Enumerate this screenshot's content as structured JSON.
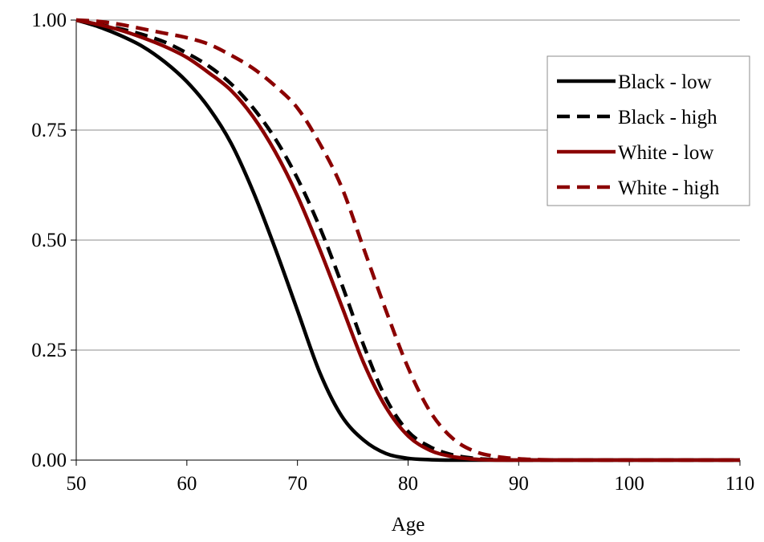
{
  "chart_data": {
    "type": "line",
    "title": "",
    "xlabel": "Age",
    "ylabel": "",
    "xlim": [
      50,
      110
    ],
    "ylim": [
      0,
      1
    ],
    "x_ticks": [
      50,
      60,
      70,
      80,
      90,
      100,
      110
    ],
    "y_ticks": [
      0,
      0.25,
      0.5,
      0.75,
      1
    ],
    "x_tick_labels": [
      "50",
      "60",
      "70",
      "80",
      "90",
      "100",
      "110"
    ],
    "y_tick_labels": [
      "0.00",
      "0.25",
      "0.50",
      "0.75",
      "1.00"
    ],
    "grid": "horizontal",
    "legend_position": "top-right",
    "x": [
      50,
      52,
      54,
      56,
      58,
      60,
      62,
      64,
      66,
      68,
      70,
      72,
      74,
      76,
      78,
      80,
      82,
      84,
      86,
      88,
      90,
      92,
      94,
      96,
      100,
      105,
      110
    ],
    "series": [
      {
        "name": "Black - low",
        "color": "#000000",
        "dash": "solid",
        "values": [
          1.0,
          0.985,
          0.965,
          0.94,
          0.905,
          0.86,
          0.8,
          0.72,
          0.61,
          0.48,
          0.34,
          0.2,
          0.1,
          0.045,
          0.015,
          0.004,
          0.001,
          0.0,
          0.0,
          0.0,
          0.0,
          0.0,
          0.0,
          0.0,
          0.0,
          0.0,
          0.0
        ]
      },
      {
        "name": "Black - high",
        "color": "#000000",
        "dash": "dashed",
        "values": [
          1.0,
          0.99,
          0.98,
          0.967,
          0.95,
          0.925,
          0.895,
          0.855,
          0.8,
          0.73,
          0.64,
          0.53,
          0.4,
          0.26,
          0.14,
          0.065,
          0.03,
          0.012,
          0.004,
          0.001,
          0.0,
          0.0,
          0.0,
          0.0,
          0.0,
          0.0,
          0.0
        ]
      },
      {
        "name": "White - low",
        "color": "#8B0000",
        "dash": "solid",
        "values": [
          1.0,
          0.99,
          0.977,
          0.96,
          0.94,
          0.915,
          0.88,
          0.84,
          0.78,
          0.7,
          0.6,
          0.48,
          0.35,
          0.22,
          0.12,
          0.055,
          0.022,
          0.008,
          0.002,
          0.0,
          0.0,
          0.0,
          0.0,
          0.0,
          0.0,
          0.0,
          0.0
        ]
      },
      {
        "name": "White - high",
        "color": "#8B0000",
        "dash": "dashed",
        "values": [
          1.0,
          0.997,
          0.99,
          0.98,
          0.97,
          0.96,
          0.945,
          0.92,
          0.89,
          0.85,
          0.8,
          0.72,
          0.62,
          0.48,
          0.34,
          0.21,
          0.11,
          0.05,
          0.02,
          0.008,
          0.003,
          0.001,
          0.0,
          0.0,
          0.0,
          0.0,
          0.0
        ]
      }
    ]
  }
}
